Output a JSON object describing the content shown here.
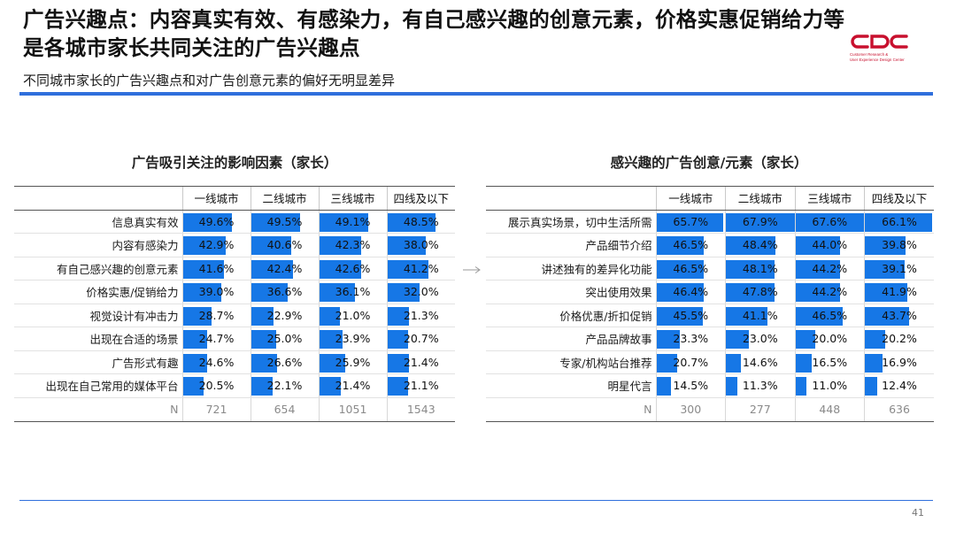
{
  "header": {
    "title": "广告兴趣点：内容真实有效、有感染力，有自己感兴趣的创意元素，价格实惠促销给力等是各城市家长共同关注的广告兴趣点",
    "subtitle": "不同城市家长的广告兴趣点和对广告创意元素的偏好无明显差异",
    "logo_caption_line1": "Customer Research &",
    "logo_caption_line2": "User Experience Design Center"
  },
  "colors": {
    "accent": "#2f6fdc",
    "bar": "#1677e6",
    "brand": "#c8102e"
  },
  "left_table": {
    "title": "广告吸引关注的影响因素（家长）",
    "columns": [
      "一线城市",
      "二线城市",
      "三线城市",
      "四线及以下"
    ],
    "rows": [
      {
        "label": "信息真实有效",
        "values": [
          "49.6%",
          "49.5%",
          "49.1%",
          "48.5%"
        ]
      },
      {
        "label": "内容有感染力",
        "values": [
          "42.9%",
          "40.6%",
          "42.3%",
          "38.0%"
        ]
      },
      {
        "label": "有自己感兴趣的创意元素",
        "values": [
          "41.6%",
          "42.4%",
          "42.6%",
          "41.2%"
        ]
      },
      {
        "label": "价格实惠/促销给力",
        "values": [
          "39.0%",
          "36.6%",
          "36.1%",
          "32.0%"
        ]
      },
      {
        "label": "视觉设计有冲击力",
        "values": [
          "28.7%",
          "22.9%",
          "21.0%",
          "21.3%"
        ]
      },
      {
        "label": "出现在合适的场景",
        "values": [
          "24.7%",
          "25.0%",
          "23.9%",
          "20.7%"
        ]
      },
      {
        "label": "广告形式有趣",
        "values": [
          "24.6%",
          "26.6%",
          "25.9%",
          "21.4%"
        ]
      },
      {
        "label": "出现在自己常用的媒体平台",
        "values": [
          "20.5%",
          "22.1%",
          "21.4%",
          "21.1%"
        ]
      }
    ],
    "n_label": "N",
    "n_values": [
      "721",
      "654",
      "1051",
      "1543"
    ]
  },
  "right_table": {
    "title": "感兴趣的广告创意/元素（家长）",
    "columns": [
      "一线城市",
      "二线城市",
      "三线城市",
      "四线及以下"
    ],
    "rows": [
      {
        "label": "展示真实场景，切中生活所需",
        "values": [
          "65.7%",
          "67.9%",
          "67.6%",
          "66.1%"
        ]
      },
      {
        "label": "产品细节介绍",
        "values": [
          "46.5%",
          "48.4%",
          "44.0%",
          "39.8%"
        ]
      },
      {
        "label": "讲述独有的差异化功能",
        "values": [
          "46.5%",
          "48.1%",
          "44.2%",
          "39.1%"
        ]
      },
      {
        "label": "突出使用效果",
        "values": [
          "46.4%",
          "47.8%",
          "44.2%",
          "41.9%"
        ]
      },
      {
        "label": "价格优惠/折扣促销",
        "values": [
          "45.5%",
          "41.1%",
          "46.5%",
          "43.7%"
        ]
      },
      {
        "label": "产品品牌故事",
        "values": [
          "23.3%",
          "23.0%",
          "20.0%",
          "20.2%"
        ]
      },
      {
        "label": "专家/机构站台推荐",
        "values": [
          "20.7%",
          "14.6%",
          "16.5%",
          "16.9%"
        ]
      },
      {
        "label": "明星代言",
        "values": [
          "14.5%",
          "11.3%",
          "11.0%",
          "12.4%"
        ]
      }
    ],
    "n_label": "N",
    "n_values": [
      "300",
      "277",
      "448",
      "636"
    ]
  },
  "footer": {
    "page_number": "41"
  }
}
